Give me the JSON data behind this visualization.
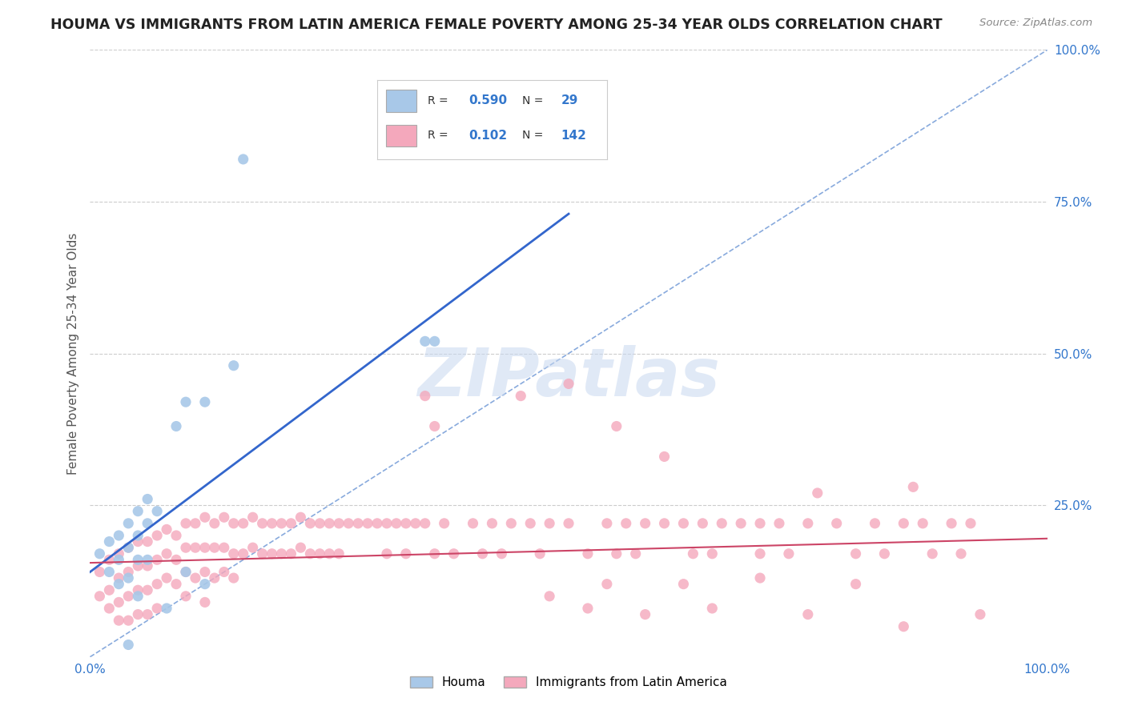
{
  "title": "HOUMA VS IMMIGRANTS FROM LATIN AMERICA FEMALE POVERTY AMONG 25-34 YEAR OLDS CORRELATION CHART",
  "source": "Source: ZipAtlas.com",
  "ylabel": "Female Poverty Among 25-34 Year Olds",
  "xlim": [
    0.0,
    1.0
  ],
  "ylim": [
    0.0,
    1.0
  ],
  "houma_R": 0.59,
  "houma_N": 29,
  "latin_R": 0.102,
  "latin_N": 142,
  "houma_color": "#a8c8e8",
  "latin_color": "#f4a8bc",
  "houma_line_color": "#3366cc",
  "latin_line_color": "#cc4466",
  "diagonal_color": "#88aadd",
  "background_color": "#ffffff",
  "grid_color": "#cccccc",
  "title_color": "#222222",
  "watermark_color": "#c8d8f0",
  "legend_R_color": "#3377cc",
  "houma_scatter": [
    [
      0.01,
      0.17
    ],
    [
      0.02,
      0.14
    ],
    [
      0.02,
      0.19
    ],
    [
      0.03,
      0.2
    ],
    [
      0.03,
      0.16
    ],
    [
      0.03,
      0.12
    ],
    [
      0.04,
      0.22
    ],
    [
      0.04,
      0.18
    ],
    [
      0.04,
      0.13
    ],
    [
      0.05,
      0.24
    ],
    [
      0.05,
      0.2
    ],
    [
      0.05,
      0.16
    ],
    [
      0.05,
      0.1
    ],
    [
      0.06,
      0.26
    ],
    [
      0.06,
      0.22
    ],
    [
      0.06,
      0.16
    ],
    [
      0.07,
      0.24
    ],
    [
      0.09,
      0.38
    ],
    [
      0.1,
      0.42
    ],
    [
      0.12,
      0.42
    ],
    [
      0.15,
      0.48
    ],
    [
      0.16,
      0.82
    ],
    [
      0.35,
      0.52
    ],
    [
      0.36,
      0.52
    ],
    [
      0.05,
      -0.02
    ],
    [
      0.12,
      0.12
    ],
    [
      0.04,
      0.02
    ],
    [
      0.1,
      0.14
    ],
    [
      0.08,
      0.08
    ]
  ],
  "latin_scatter": [
    [
      0.01,
      0.14
    ],
    [
      0.01,
      0.1
    ],
    [
      0.02,
      0.16
    ],
    [
      0.02,
      0.11
    ],
    [
      0.02,
      0.08
    ],
    [
      0.03,
      0.17
    ],
    [
      0.03,
      0.13
    ],
    [
      0.03,
      0.09
    ],
    [
      0.03,
      0.06
    ],
    [
      0.04,
      0.18
    ],
    [
      0.04,
      0.14
    ],
    [
      0.04,
      0.1
    ],
    [
      0.04,
      0.06
    ],
    [
      0.05,
      0.19
    ],
    [
      0.05,
      0.15
    ],
    [
      0.05,
      0.11
    ],
    [
      0.05,
      0.07
    ],
    [
      0.06,
      0.19
    ],
    [
      0.06,
      0.15
    ],
    [
      0.06,
      0.11
    ],
    [
      0.06,
      0.07
    ],
    [
      0.07,
      0.2
    ],
    [
      0.07,
      0.16
    ],
    [
      0.07,
      0.12
    ],
    [
      0.07,
      0.08
    ],
    [
      0.08,
      0.21
    ],
    [
      0.08,
      0.17
    ],
    [
      0.08,
      0.13
    ],
    [
      0.09,
      0.2
    ],
    [
      0.09,
      0.16
    ],
    [
      0.09,
      0.12
    ],
    [
      0.1,
      0.22
    ],
    [
      0.1,
      0.18
    ],
    [
      0.1,
      0.14
    ],
    [
      0.1,
      0.1
    ],
    [
      0.11,
      0.22
    ],
    [
      0.11,
      0.18
    ],
    [
      0.11,
      0.13
    ],
    [
      0.12,
      0.23
    ],
    [
      0.12,
      0.18
    ],
    [
      0.12,
      0.14
    ],
    [
      0.12,
      0.09
    ],
    [
      0.13,
      0.22
    ],
    [
      0.13,
      0.18
    ],
    [
      0.13,
      0.13
    ],
    [
      0.14,
      0.23
    ],
    [
      0.14,
      0.18
    ],
    [
      0.14,
      0.14
    ],
    [
      0.15,
      0.22
    ],
    [
      0.15,
      0.17
    ],
    [
      0.15,
      0.13
    ],
    [
      0.16,
      0.22
    ],
    [
      0.16,
      0.17
    ],
    [
      0.17,
      0.23
    ],
    [
      0.17,
      0.18
    ],
    [
      0.18,
      0.22
    ],
    [
      0.18,
      0.17
    ],
    [
      0.19,
      0.22
    ],
    [
      0.19,
      0.17
    ],
    [
      0.2,
      0.22
    ],
    [
      0.2,
      0.17
    ],
    [
      0.21,
      0.22
    ],
    [
      0.21,
      0.17
    ],
    [
      0.22,
      0.23
    ],
    [
      0.22,
      0.18
    ],
    [
      0.23,
      0.22
    ],
    [
      0.23,
      0.17
    ],
    [
      0.24,
      0.22
    ],
    [
      0.24,
      0.17
    ],
    [
      0.25,
      0.22
    ],
    [
      0.25,
      0.17
    ],
    [
      0.26,
      0.22
    ],
    [
      0.26,
      0.17
    ],
    [
      0.27,
      0.22
    ],
    [
      0.28,
      0.22
    ],
    [
      0.29,
      0.22
    ],
    [
      0.3,
      0.22
    ],
    [
      0.31,
      0.22
    ],
    [
      0.31,
      0.17
    ],
    [
      0.32,
      0.22
    ],
    [
      0.33,
      0.22
    ],
    [
      0.33,
      0.17
    ],
    [
      0.34,
      0.22
    ],
    [
      0.35,
      0.22
    ],
    [
      0.35,
      0.43
    ],
    [
      0.36,
      0.17
    ],
    [
      0.36,
      0.38
    ],
    [
      0.37,
      0.22
    ],
    [
      0.38,
      0.17
    ],
    [
      0.4,
      0.22
    ],
    [
      0.41,
      0.17
    ],
    [
      0.42,
      0.22
    ],
    [
      0.43,
      0.17
    ],
    [
      0.44,
      0.22
    ],
    [
      0.45,
      0.43
    ],
    [
      0.46,
      0.22
    ],
    [
      0.47,
      0.17
    ],
    [
      0.48,
      0.22
    ],
    [
      0.5,
      0.22
    ],
    [
      0.52,
      0.17
    ],
    [
      0.54,
      0.22
    ],
    [
      0.55,
      0.17
    ],
    [
      0.56,
      0.22
    ],
    [
      0.57,
      0.17
    ],
    [
      0.58,
      0.22
    ],
    [
      0.6,
      0.22
    ],
    [
      0.62,
      0.22
    ],
    [
      0.63,
      0.17
    ],
    [
      0.64,
      0.22
    ],
    [
      0.65,
      0.17
    ],
    [
      0.66,
      0.22
    ],
    [
      0.68,
      0.22
    ],
    [
      0.7,
      0.22
    ],
    [
      0.7,
      0.17
    ],
    [
      0.72,
      0.22
    ],
    [
      0.73,
      0.17
    ],
    [
      0.75,
      0.22
    ],
    [
      0.76,
      0.27
    ],
    [
      0.78,
      0.22
    ],
    [
      0.8,
      0.17
    ],
    [
      0.82,
      0.22
    ],
    [
      0.83,
      0.17
    ],
    [
      0.85,
      0.22
    ],
    [
      0.86,
      0.28
    ],
    [
      0.87,
      0.22
    ],
    [
      0.88,
      0.17
    ],
    [
      0.9,
      0.22
    ],
    [
      0.91,
      0.17
    ],
    [
      0.92,
      0.22
    ],
    [
      0.93,
      0.07
    ],
    [
      0.5,
      0.45
    ],
    [
      0.55,
      0.38
    ],
    [
      0.6,
      0.33
    ],
    [
      0.48,
      0.1
    ],
    [
      0.52,
      0.08
    ],
    [
      0.54,
      0.12
    ],
    [
      0.58,
      0.07
    ],
    [
      0.62,
      0.12
    ],
    [
      0.65,
      0.08
    ],
    [
      0.7,
      0.13
    ],
    [
      0.75,
      0.07
    ],
    [
      0.8,
      0.12
    ],
    [
      0.85,
      0.05
    ]
  ],
  "houma_line_x0": 0.0,
  "houma_line_y0": 0.14,
  "houma_line_x1": 0.5,
  "houma_line_y1": 0.73,
  "latin_line_x0": 0.0,
  "latin_line_y0": 0.155,
  "latin_line_x1": 1.0,
  "latin_line_y1": 0.195
}
